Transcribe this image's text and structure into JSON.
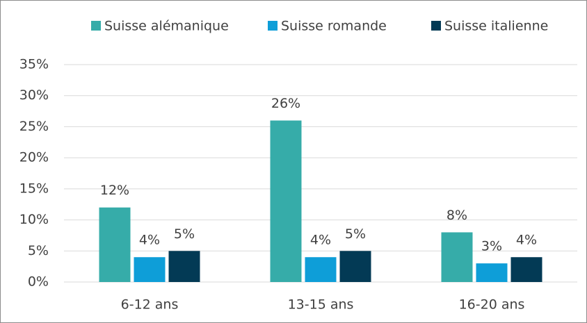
{
  "chart_data": {
    "type": "bar",
    "categories": [
      "6-12 ans",
      "13-15 ans",
      "16-20 ans"
    ],
    "series": [
      {
        "name": "Suisse alémanique",
        "color": "#36aca9",
        "values": [
          12,
          26,
          8
        ],
        "value_labels": [
          "12%",
          "26%",
          "8%"
        ]
      },
      {
        "name": "Suisse romande",
        "color": "#0e9ed8",
        "values": [
          4,
          4,
          3
        ],
        "value_labels": [
          "4%",
          "4%",
          "3%"
        ]
      },
      {
        "name": "Suisse italienne",
        "color": "#033a55",
        "values": [
          5,
          5,
          4
        ],
        "value_labels": [
          "5%",
          "5%",
          "4%"
        ]
      }
    ],
    "ylim": [
      0,
      35
    ],
    "yticks": [
      {
        "value": 0,
        "label": "0%"
      },
      {
        "value": 5,
        "label": "5%"
      },
      {
        "value": 10,
        "label": "10%"
      },
      {
        "value": 15,
        "label": "15%"
      },
      {
        "value": 20,
        "label": "20%"
      },
      {
        "value": 25,
        "label": "25%"
      },
      {
        "value": 30,
        "label": "30%"
      },
      {
        "value": 35,
        "label": "35%"
      }
    ],
    "grid": true,
    "legend": "top"
  }
}
